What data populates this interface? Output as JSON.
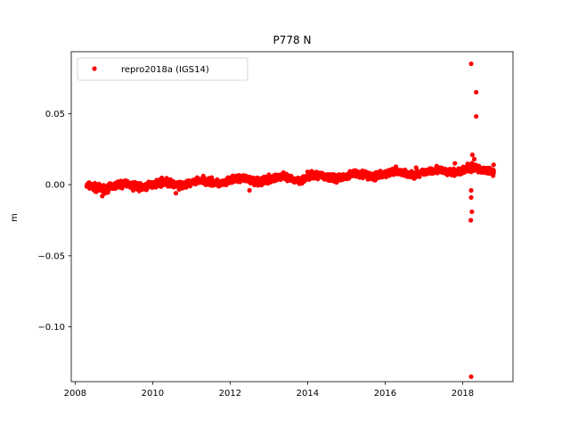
{
  "chart_data": {
    "type": "scatter",
    "title": "P778 N",
    "xlabel": "",
    "ylabel": "m",
    "xlim": [
      2007.9,
      2019.3
    ],
    "ylim": [
      -0.1385,
      0.0935
    ],
    "xticks": [
      2008,
      2010,
      2012,
      2014,
      2016,
      2018
    ],
    "xtick_labels": [
      "2008",
      "2010",
      "2012",
      "2014",
      "2016",
      "2018"
    ],
    "yticks": [
      -0.1,
      -0.05,
      0.0,
      0.05
    ],
    "ytick_labels": [
      "−0.10",
      "−0.05",
      "0.00",
      "0.05"
    ],
    "grid": false,
    "legend_position": "top-left",
    "series": [
      {
        "name": "repro2018a (IGS14)",
        "color": "#ff0000",
        "marker": "circle",
        "trend": {
          "x_start": 2008.3,
          "x_end": 2018.8,
          "y_start": -0.002,
          "y_end": 0.011,
          "scatter": 0.0025
        },
        "points": [
          {
            "x": 2008.35,
            "y": 0.0
          },
          {
            "x": 2008.55,
            "y": -0.005
          },
          {
            "x": 2008.7,
            "y": -0.008
          },
          {
            "x": 2009.5,
            "y": -0.004
          },
          {
            "x": 2010.6,
            "y": -0.006
          },
          {
            "x": 2011.5,
            "y": 0.004
          },
          {
            "x": 2012.5,
            "y": -0.004
          },
          {
            "x": 2013.0,
            "y": 0.007
          },
          {
            "x": 2014.0,
            "y": 0.009
          },
          {
            "x": 2015.2,
            "y": 0.01
          },
          {
            "x": 2016.8,
            "y": 0.012
          },
          {
            "x": 2017.8,
            "y": 0.015
          },
          {
            "x": 2018.22,
            "y": 0.085
          },
          {
            "x": 2018.35,
            "y": 0.065
          },
          {
            "x": 2018.35,
            "y": 0.048
          },
          {
            "x": 2018.25,
            "y": 0.021
          },
          {
            "x": 2018.3,
            "y": 0.018
          },
          {
            "x": 2018.22,
            "y": -0.004
          },
          {
            "x": 2018.22,
            "y": -0.009
          },
          {
            "x": 2018.24,
            "y": -0.019
          },
          {
            "x": 2018.21,
            "y": -0.025
          },
          {
            "x": 2018.22,
            "y": -0.135
          },
          {
            "x": 2018.8,
            "y": 0.014
          },
          {
            "x": 2018.8,
            "y": 0.01
          }
        ]
      }
    ]
  }
}
